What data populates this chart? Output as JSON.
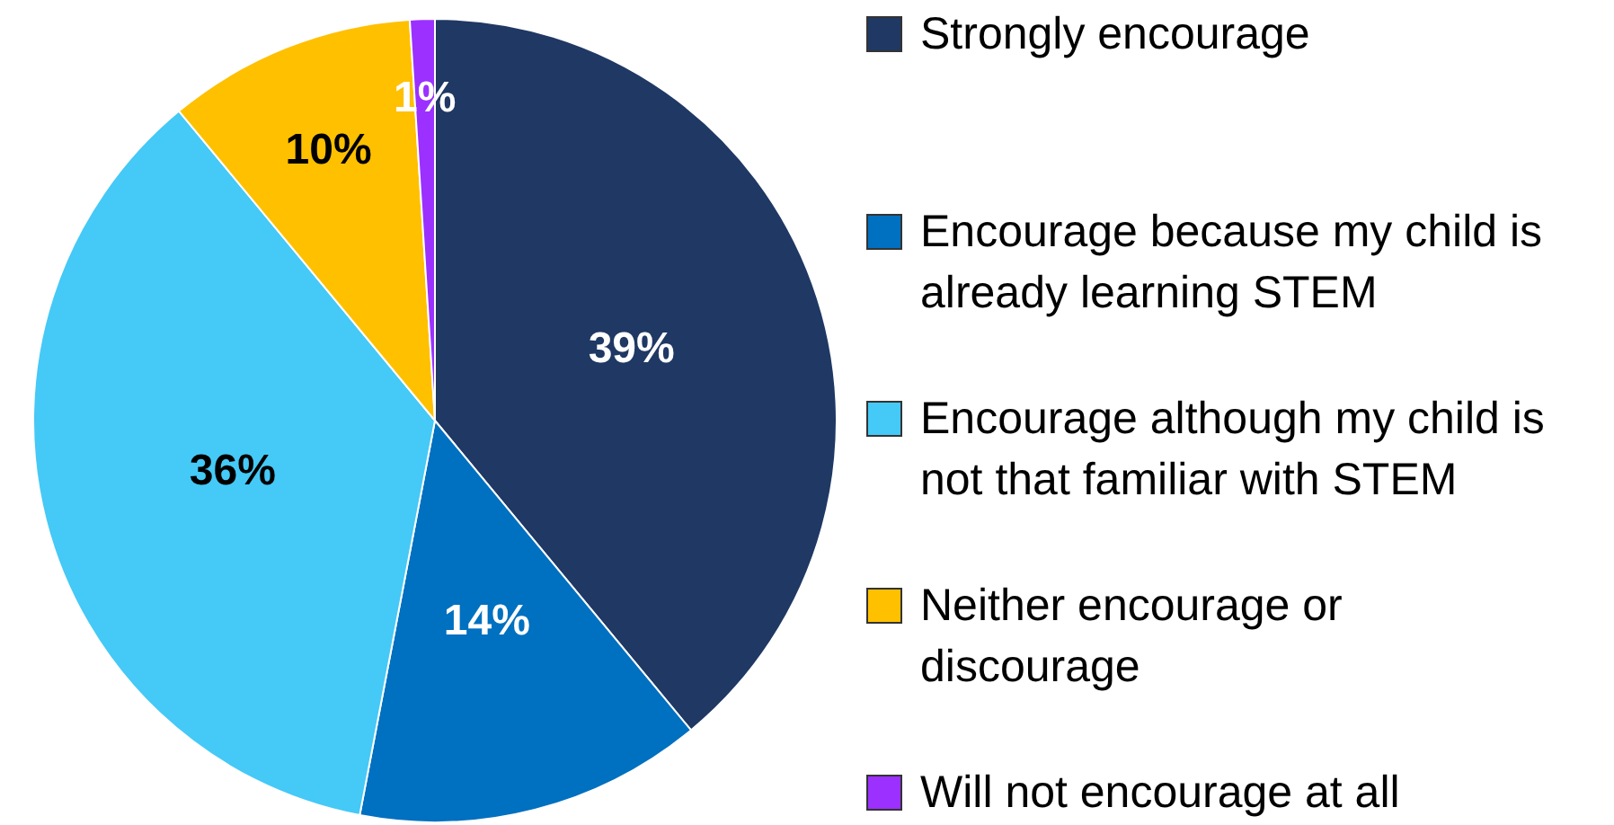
{
  "chart_data": {
    "type": "pie",
    "categories": [
      "Strongly encourage",
      "Encourage because my child is already learning STEM",
      "Encourage although my child is not that familiar with STEM",
      "Neither encourage or discourage",
      "Will not encourage at all"
    ],
    "values": [
      39,
      14,
      36,
      10,
      1
    ],
    "colors": [
      "#1f3864",
      "#0070c0",
      "#45c9f7",
      "#ffc000",
      "#9b30ff"
    ],
    "value_labels": [
      "39%",
      "14%",
      "36%",
      "10%",
      "1%"
    ],
    "legend": "right"
  }
}
